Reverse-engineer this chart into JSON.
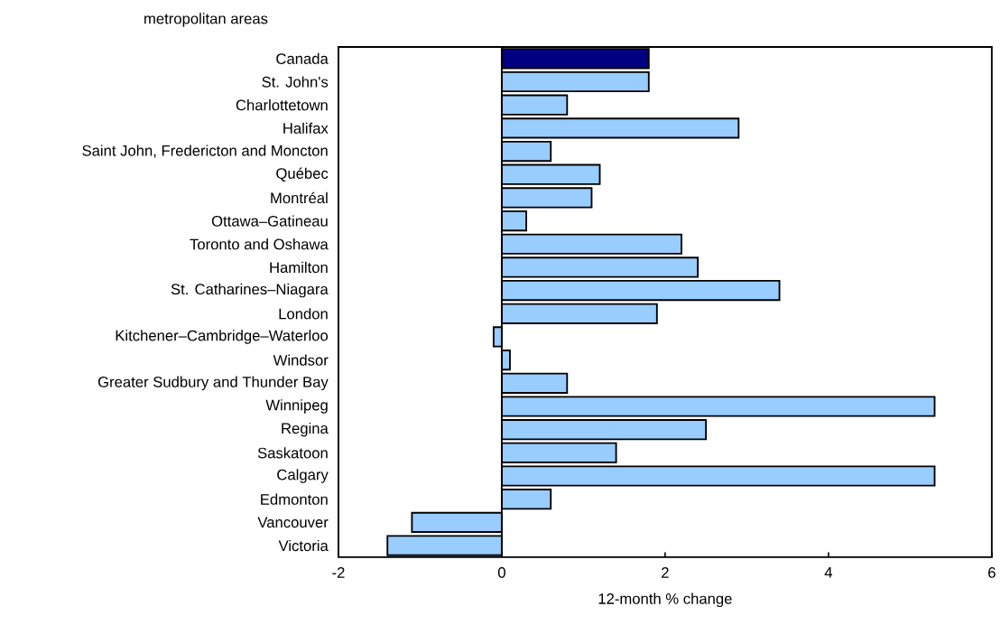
{
  "chart_data": {
    "type": "bar",
    "orientation": "horizontal",
    "xlabel": "12-month % change",
    "ylabel": "metropolitan areas",
    "categories": [
      "Canada",
      "St. John's",
      "Charlottetown",
      "Halifax",
      "Saint John, Fredericton and Moncton",
      "Québec",
      "Montréal",
      "Ottawa–Gatineau",
      "Toronto and Oshawa",
      "Hamilton",
      "St. Catharines–Niagara",
      "London",
      "Kitchener–Cambridge–Waterloo",
      "Windsor",
      "Greater Sudbury and Thunder Bay",
      "Winnipeg",
      "Regina",
      "Saskatoon",
      "Calgary",
      "Edmonton",
      "Vancouver",
      "Victoria"
    ],
    "values": [
      1.8,
      1.8,
      0.8,
      2.9,
      0.6,
      1.2,
      1.1,
      0.3,
      2.2,
      2.4,
      3.4,
      1.9,
      -0.1,
      0.1,
      0.8,
      5.3,
      2.5,
      1.4,
      5.3,
      0.6,
      -1.1,
      -1.4
    ],
    "colors": [
      "#000080",
      "#99ccff",
      "#99ccff",
      "#99ccff",
      "#99ccff",
      "#99ccff",
      "#99ccff",
      "#99ccff",
      "#99ccff",
      "#99ccff",
      "#99ccff",
      "#99ccff",
      "#99ccff",
      "#99ccff",
      "#99ccff",
      "#99ccff",
      "#99ccff",
      "#99ccff",
      "#99ccff",
      "#99ccff",
      "#99ccff",
      "#99ccff"
    ],
    "xlim": [
      -2,
      6
    ],
    "xticks": [
      -2,
      0,
      2,
      4,
      6
    ]
  }
}
